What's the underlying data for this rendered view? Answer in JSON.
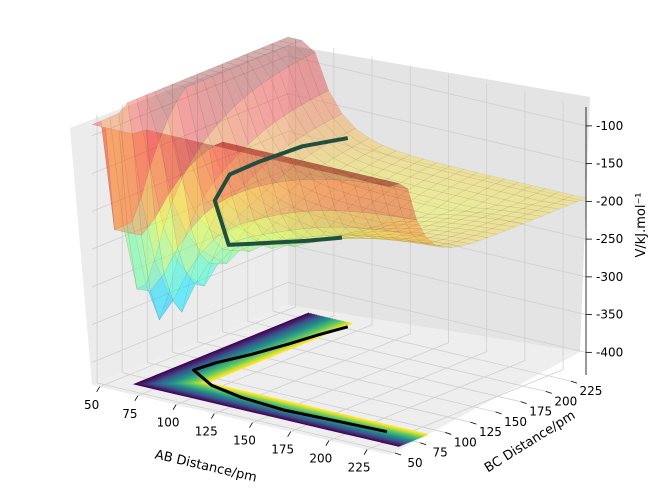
{
  "chart_data": {
    "type": "surface3d",
    "title": "",
    "xlabel": "AB Distance/pm",
    "ylabel": "BC Distance/pm",
    "zlabel": "V/kJ.mol⁻¹",
    "x_ticks": [
      "50",
      "75",
      "100",
      "125",
      "150",
      "175",
      "200",
      "225"
    ],
    "y_ticks": [
      "50",
      "75",
      "100",
      "125",
      "150",
      "175",
      "200",
      "225"
    ],
    "z_ticks": [
      "-100",
      "-150",
      "-200",
      "-250",
      "-300",
      "-350",
      "-400"
    ],
    "xlim": [
      45,
      240
    ],
    "ylim": [
      45,
      240
    ],
    "zlim": [
      -430,
      -75
    ],
    "grid": true,
    "surface_colormap": "jet",
    "contour_colormap": "viridis",
    "trajectory": {
      "projected_path": [
        [
          92,
          228
        ],
        [
          88,
          205
        ],
        [
          85,
          180
        ],
        [
          80,
          150
        ],
        [
          74,
          125
        ],
        [
          72,
          105
        ],
        [
          95,
          88
        ],
        [
          120,
          80
        ],
        [
          150,
          76
        ],
        [
          180,
          78
        ],
        [
          215,
          80
        ]
      ],
      "surface_path": [
        [
          92,
          228
        ],
        [
          84,
          195
        ],
        [
          78,
          160
        ],
        [
          74,
          138
        ],
        [
          76,
          120
        ],
        [
          95,
          105
        ],
        [
          120,
          100
        ],
        [
          150,
          98
        ],
        [
          175,
          96
        ]
      ]
    }
  }
}
